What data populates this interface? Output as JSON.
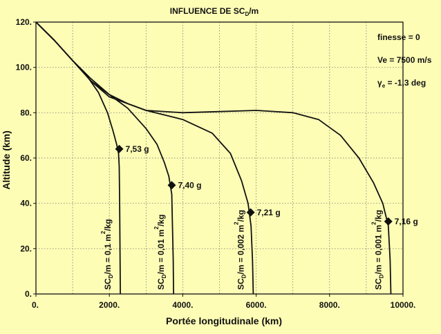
{
  "chart_data": {
    "type": "line",
    "title": {
      "pre": "INFLUENCE DE SC",
      "sub": "D",
      "post": "/m"
    },
    "xlabel": "Portée longitudinale (km)",
    "ylabel": "Altitude (km)",
    "xlim": [
      0,
      10000
    ],
    "ylim": [
      0,
      120
    ],
    "grid": true,
    "xticks": [
      0,
      1000,
      2000,
      3000,
      4000,
      5000,
      6000,
      7000,
      8000,
      9000,
      10000
    ],
    "yticks": [
      0,
      20,
      40,
      60,
      80,
      100,
      120
    ],
    "xtick_labels": [
      "0.",
      "2000.",
      "4000.",
      "6000.",
      "8000.",
      "10000."
    ],
    "xtick_label_values": [
      0,
      2000,
      4000,
      6000,
      8000,
      10000
    ],
    "ytick_labels": [
      "0.",
      "20.",
      "40.",
      "60.",
      "80.",
      "100.",
      "120."
    ],
    "ytick_label_values": [
      0,
      20,
      40,
      60,
      80,
      100,
      120
    ],
    "annotations": {
      "finesse": "finesse = 0",
      "ve": "Ve = 7500 m/s",
      "gamma": {
        "pre": "γ",
        "sub": "e",
        "post": " = -1,3 deg"
      }
    },
    "series": [
      {
        "label": {
          "a": "SC",
          "sub": "D",
          "b": "/m = 0,1 m",
          "sup": "2",
          "c": "/kg"
        },
        "peak_label": "7,53 g",
        "peak": [
          2270,
          64
        ],
        "x": [
          0,
          500,
          1000,
          1400,
          1700,
          1950,
          2100,
          2200,
          2250,
          2270,
          2280,
          2290,
          2300
        ],
        "y": [
          120,
          112,
          103,
          96,
          89,
          80,
          72,
          66,
          62,
          56,
          40,
          20,
          0
        ]
      },
      {
        "label": {
          "a": "SC",
          "sub": "D",
          "b": "/m = 0,01 m",
          "sup": "2",
          "c": "/kg"
        },
        "peak_label": "7,40 g",
        "peak": [
          3700,
          48
        ],
        "x": [
          0,
          500,
          1000,
          1500,
          2000,
          2500,
          3000,
          3300,
          3500,
          3620,
          3700,
          3720,
          3740,
          3750
        ],
        "y": [
          120,
          112,
          103,
          95,
          88,
          82,
          73,
          66,
          58,
          52,
          44,
          30,
          15,
          0
        ]
      },
      {
        "label": {
          "a": "SC",
          "sub": "D",
          "b": "/m = 0,002 m",
          "sup": "2",
          "c": "/kg"
        },
        "peak_label": "7,21 g",
        "peak": [
          5850,
          36
        ],
        "x": [
          0,
          500,
          1000,
          1500,
          2000,
          3000,
          4000,
          4800,
          5300,
          5600,
          5780,
          5860,
          5900,
          5920
        ],
        "y": [
          120,
          112,
          103,
          94,
          87,
          81,
          77,
          71,
          62,
          50,
          40,
          30,
          15,
          0
        ]
      },
      {
        "label": {
          "a": "SC",
          "sub": "D",
          "b": "/m = 0,001 m",
          "sup": "2",
          "c": "/kg"
        },
        "peak_label": "7,16 g",
        "peak": [
          9600,
          32
        ],
        "x": [
          0,
          500,
          1000,
          1500,
          2000,
          2500,
          3000,
          4000,
          5000,
          6000,
          7000,
          7700,
          8300,
          8800,
          9200,
          9450,
          9600,
          9650,
          9670
        ],
        "y": [
          120,
          112,
          103,
          94,
          88,
          84,
          81,
          80,
          80.5,
          81,
          80,
          77,
          70,
          60,
          49,
          40,
          30,
          15,
          0
        ]
      }
    ]
  }
}
